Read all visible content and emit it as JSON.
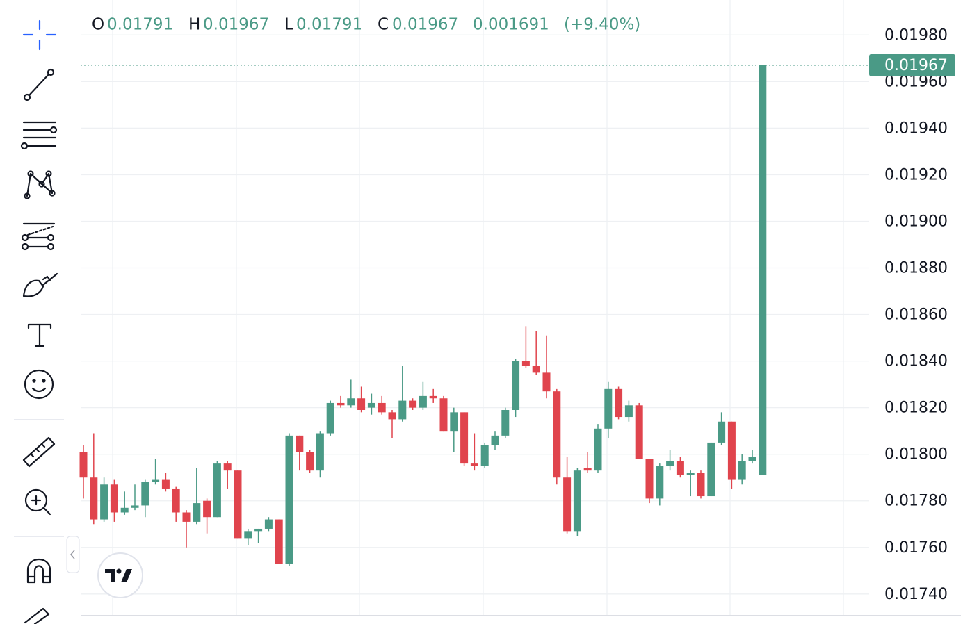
{
  "chart_data": {
    "type": "candlestick",
    "ohlc_header": {
      "o_label": "O",
      "open": 0.01791,
      "h_label": "H",
      "high": 0.01967,
      "l_label": "L",
      "low": 0.01791,
      "c_label": "C",
      "close": 0.01967,
      "change": 0.001691,
      "change_pct": "(+9.40%)"
    },
    "open": [
      0.01801,
      0.0179,
      0.01772,
      0.01787,
      0.01775,
      0.01777,
      0.01778,
      0.01788,
      0.01789,
      0.01785,
      0.01775,
      0.01771,
      0.0178,
      0.01773,
      0.01796,
      0.01793,
      0.01764,
      0.01767,
      0.01768,
      0.01772,
      0.01753,
      0.01808,
      0.01801,
      0.01793,
      0.01809,
      0.01822,
      0.01821,
      0.01824,
      0.0182,
      0.01822,
      0.01818,
      0.01815,
      0.01823,
      0.0182,
      0.01825,
      0.01824,
      0.0181,
      0.01818,
      0.01796,
      0.01795,
      0.01804,
      0.01808,
      0.01819,
      0.0184,
      0.01838,
      0.01835,
      0.01827,
      0.0179,
      0.01767,
      0.01794,
      0.01793,
      0.01811,
      0.01828,
      0.01816,
      0.01821,
      0.01798,
      0.01781,
      0.01795,
      0.01797,
      0.01791,
      0.01792,
      0.01782,
      0.01805,
      0.01814,
      0.01789,
      0.01797,
      0.01791
    ],
    "high": [
      0.01804,
      0.01809,
      0.0179,
      0.01789,
      0.01784,
      0.01787,
      0.01789,
      0.01798,
      0.01792,
      0.01786,
      0.01776,
      0.01794,
      0.01781,
      0.01797,
      0.01797,
      0.01793,
      0.01768,
      0.01768,
      0.01773,
      0.01772,
      0.01809,
      0.01808,
      0.01802,
      0.0181,
      0.01823,
      0.01825,
      0.01832,
      0.01829,
      0.01826,
      0.01825,
      0.01819,
      0.01838,
      0.01824,
      0.01831,
      0.01828,
      0.01825,
      0.0182,
      0.01818,
      0.01809,
      0.01805,
      0.0181,
      0.0182,
      0.01841,
      0.01855,
      0.01853,
      0.01851,
      0.01828,
      0.01799,
      0.01794,
      0.01801,
      0.01813,
      0.01831,
      0.01829,
      0.01823,
      0.01822,
      0.01798,
      0.01796,
      0.01802,
      0.01799,
      0.01793,
      0.01793,
      0.01805,
      0.01818,
      0.01814,
      0.018,
      0.01802,
      0.01967
    ],
    "low": [
      0.01781,
      0.0177,
      0.01771,
      0.01771,
      0.01774,
      0.01776,
      0.01773,
      0.01787,
      0.01784,
      0.01771,
      0.0176,
      0.0177,
      0.01766,
      0.01773,
      0.01785,
      0.01764,
      0.01761,
      0.01762,
      0.01767,
      0.01753,
      0.01752,
      0.01793,
      0.01792,
      0.0179,
      0.01808,
      0.0182,
      0.0182,
      0.01818,
      0.01817,
      0.01817,
      0.01807,
      0.01814,
      0.01819,
      0.01819,
      0.01822,
      0.0181,
      0.01801,
      0.01795,
      0.01793,
      0.01794,
      0.01802,
      0.01807,
      0.01816,
      0.01837,
      0.01834,
      0.01824,
      0.01787,
      0.01766,
      0.01765,
      0.01792,
      0.01792,
      0.01807,
      0.01815,
      0.01814,
      0.01798,
      0.01779,
      0.01778,
      0.01793,
      0.0179,
      0.01782,
      0.01781,
      0.01782,
      0.01804,
      0.01785,
      0.01787,
      0.01796,
      0.01791
    ],
    "close": [
      0.0179,
      0.01772,
      0.01787,
      0.01775,
      0.01777,
      0.01778,
      0.01788,
      0.01789,
      0.01785,
      0.01775,
      0.01771,
      0.01779,
      0.01773,
      0.01796,
      0.01793,
      0.01764,
      0.01767,
      0.01768,
      0.01772,
      0.01753,
      0.01808,
      0.01801,
      0.01793,
      0.01809,
      0.01822,
      0.01821,
      0.01824,
      0.01819,
      0.01822,
      0.01818,
      0.01815,
      0.01823,
      0.0182,
      0.01825,
      0.01824,
      0.0181,
      0.01818,
      0.01796,
      0.01795,
      0.01804,
      0.01808,
      0.01819,
      0.0184,
      0.01838,
      0.01835,
      0.01827,
      0.0179,
      0.01767,
      0.01793,
      0.01793,
      0.01811,
      0.01828,
      0.01816,
      0.01821,
      0.01798,
      0.01781,
      0.01795,
      0.01797,
      0.01791,
      0.01792,
      0.01782,
      0.01805,
      0.01814,
      0.01789,
      0.01797,
      0.01799,
      0.01967
    ],
    "up_color": "#4a9a86",
    "down_color": "#e0444d",
    "last_price": 0.01967,
    "ylim": [
      0.01731,
      0.01995
    ],
    "yticks": [
      {
        "value": 0.0174,
        "label": "0.01740"
      },
      {
        "value": 0.0176,
        "label": "0.01760"
      },
      {
        "value": 0.0178,
        "label": "0.01780"
      },
      {
        "value": 0.018,
        "label": "0.01800"
      },
      {
        "value": 0.0182,
        "label": "0.01820"
      },
      {
        "value": 0.0184,
        "label": "0.01840"
      },
      {
        "value": 0.0186,
        "label": "0.01860"
      },
      {
        "value": 0.0188,
        "label": "0.01880"
      },
      {
        "value": 0.019,
        "label": "0.01900"
      },
      {
        "value": 0.0192,
        "label": "0.01920"
      },
      {
        "value": 0.0194,
        "label": "0.01940"
      },
      {
        "value": 0.0196,
        "label": "0.01960"
      },
      {
        "value": 0.0198,
        "label": "0.01980"
      }
    ],
    "grid": true
  }
}
